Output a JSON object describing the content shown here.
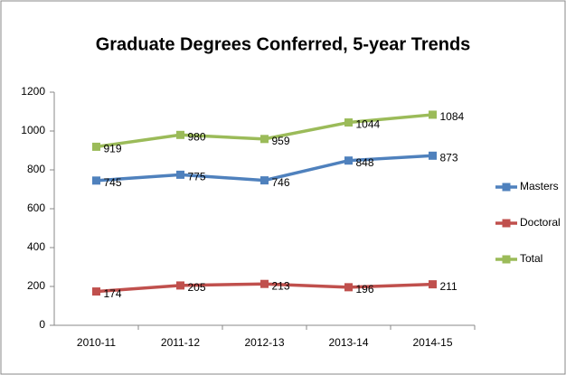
{
  "chart_data": {
    "type": "line",
    "title": "Graduate Degrees Conferred, 5-year Trends",
    "categories": [
      "2010-11",
      "2011-12",
      "2012-13",
      "2013-14",
      "2014-15"
    ],
    "series": [
      {
        "name": "Masters",
        "color": "#4f81bd",
        "values": [
          745,
          775,
          746,
          848,
          873
        ]
      },
      {
        "name": "Doctoral",
        "color": "#c0504d",
        "values": [
          174,
          205,
          213,
          196,
          211
        ]
      },
      {
        "name": "Total",
        "color": "#9bbb59",
        "values": [
          919,
          980,
          959,
          1044,
          1084
        ]
      }
    ],
    "ylim": [
      0,
      1200
    ],
    "yticks": [
      0,
      200,
      400,
      600,
      800,
      1000,
      1200
    ],
    "grid": false,
    "legend": "right"
  }
}
